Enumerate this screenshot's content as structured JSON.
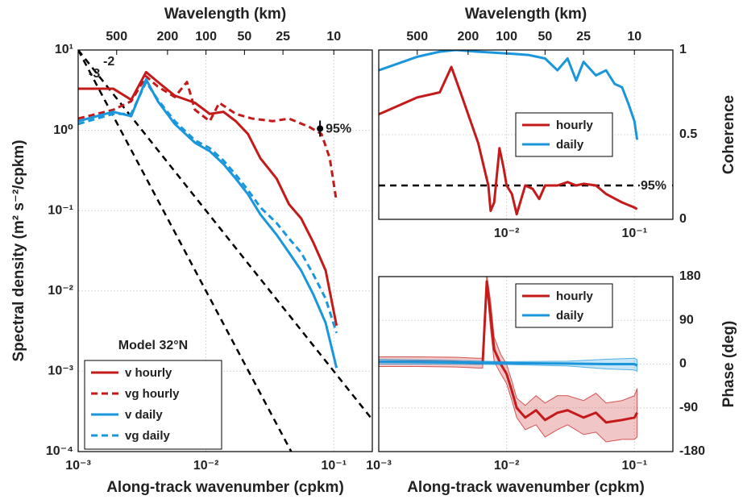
{
  "chart_data": [
    {
      "type": "line",
      "xlabel": "Along-track wavenumber (cpkm)",
      "ylabel": "Spectral density (m² s⁻²/cpkm)",
      "x2label": "Wavelength (km)",
      "xscale": "log",
      "yscale": "log",
      "xlim": [
        0.001,
        0.2
      ],
      "ylim": [
        0.0001,
        10
      ],
      "xticks": [
        {
          "value": 0.001,
          "label": "10⁻³"
        },
        {
          "value": 0.01,
          "label": "10⁻²"
        },
        {
          "value": 0.1,
          "label": "10⁻¹"
        }
      ],
      "yticks": [
        {
          "value": 0.0001,
          "label": "10⁻⁴"
        },
        {
          "value": 0.001,
          "label": "10⁻³"
        },
        {
          "value": 0.01,
          "label": "10⁻²"
        },
        {
          "value": 0.1,
          "label": "10⁻¹"
        },
        {
          "value": 1,
          "label": "10⁰"
        },
        {
          "value": 10,
          "label": "10¹"
        }
      ],
      "x2ticks": [
        500,
        200,
        100,
        50,
        25,
        10
      ],
      "yaxis": "left",
      "grid": true,
      "legend": "lower left",
      "legend_title": "Model 32°N",
      "series": [
        {
          "name": "v hourly",
          "color": "#c41a1a",
          "dash": false,
          "x": [
            0.001,
            0.00188,
            0.0026,
            0.0034,
            0.0042,
            0.0057,
            0.0082,
            0.0107,
            0.0137,
            0.0171,
            0.0213,
            0.0266,
            0.0357,
            0.0446,
            0.0555,
            0.0692,
            0.0863,
            0.105
          ],
          "values": [
            3.3,
            3.3,
            2.4,
            5.3,
            4.0,
            2.7,
            2.2,
            1.6,
            1.7,
            1.3,
            0.9,
            0.45,
            0.25,
            0.12,
            0.08,
            0.04,
            0.018,
            0.0037
          ]
        },
        {
          "name": "vg hourly",
          "color": "#c41a1a",
          "dash": true,
          "x": [
            0.001,
            0.00188,
            0.0026,
            0.0034,
            0.0042,
            0.0057,
            0.0071,
            0.0082,
            0.0107,
            0.0127,
            0.0171,
            0.023,
            0.0332,
            0.0446,
            0.0643,
            0.0801,
            0.0929,
            0.105
          ],
          "values": [
            1.4,
            1.8,
            2.3,
            4.7,
            3.5,
            2.6,
            4.0,
            1.8,
            1.3,
            2.2,
            1.6,
            1.4,
            1.3,
            1.4,
            1.1,
            0.9,
            0.45,
            0.13
          ]
        },
        {
          "name": "v daily",
          "color": "#1a96dc",
          "dash": false,
          "x": [
            0.001,
            0.00188,
            0.0026,
            0.0034,
            0.0042,
            0.0057,
            0.0082,
            0.0107,
            0.0137,
            0.0171,
            0.0213,
            0.0266,
            0.0357,
            0.0446,
            0.0555,
            0.0692,
            0.0863,
            0.105
          ],
          "values": [
            1.3,
            1.7,
            1.5,
            4.3,
            2.3,
            1.2,
            0.7,
            0.55,
            0.38,
            0.25,
            0.16,
            0.09,
            0.05,
            0.03,
            0.018,
            0.009,
            0.004,
            0.0011
          ]
        },
        {
          "name": "vg daily",
          "color": "#1a96dc",
          "dash": true,
          "x": [
            0.001,
            0.00188,
            0.0026,
            0.0034,
            0.0042,
            0.0057,
            0.0082,
            0.0107,
            0.0137,
            0.0171,
            0.0213,
            0.0266,
            0.0357,
            0.0446,
            0.0555,
            0.0692,
            0.0863,
            0.105
          ],
          "values": [
            1.2,
            1.6,
            1.6,
            4.0,
            2.4,
            1.3,
            0.75,
            0.6,
            0.42,
            0.28,
            0.18,
            0.11,
            0.07,
            0.045,
            0.03,
            0.016,
            0.008,
            0.003
          ]
        }
      ],
      "reference_lines": [
        {
          "label": "-2",
          "color": "#000000",
          "x": [
            0.001,
            0.2
          ],
          "values": [
            10,
            0.00025
          ]
        },
        {
          "label": "-3",
          "color": "#000000",
          "x": [
            0.001,
            0.0464
          ],
          "values": [
            10,
            0.0001
          ]
        }
      ],
      "annotations": [
        {
          "text": "95%",
          "x": 0.078,
          "y": 1.05
        }
      ]
    },
    {
      "type": "line",
      "ylabel": "Coherence",
      "x2label": "Wavelength (km)",
      "xscale": "log",
      "yscale": "linear",
      "xlim": [
        0.001,
        0.2
      ],
      "ylim": [
        0,
        1
      ],
      "xticks": [
        {
          "value": 0.01,
          "label": "10⁻²"
        },
        {
          "value": 0.1,
          "label": "10⁻¹"
        }
      ],
      "yticks": [
        0,
        0.5,
        1
      ],
      "x2ticks": [
        500,
        200,
        100,
        50,
        25,
        10
      ],
      "yaxis": "right",
      "grid": true,
      "legend": "center right",
      "series": [
        {
          "name": "hourly",
          "color": "#c41a1a",
          "x": [
            0.001,
            0.002,
            0.003,
            0.0037,
            0.0045,
            0.006,
            0.0072,
            0.0075,
            0.008,
            0.0088,
            0.0095,
            0.01,
            0.011,
            0.012,
            0.014,
            0.016,
            0.018,
            0.02,
            0.025,
            0.03,
            0.035,
            0.04,
            0.05,
            0.06,
            0.08,
            0.1,
            0.105
          ],
          "values": [
            0.62,
            0.72,
            0.75,
            0.9,
            0.72,
            0.45,
            0.2,
            0.05,
            0.1,
            0.42,
            0.3,
            0.2,
            0.15,
            0.03,
            0.2,
            0.18,
            0.12,
            0.2,
            0.2,
            0.22,
            0.2,
            0.21,
            0.2,
            0.15,
            0.1,
            0.07,
            0.06
          ]
        },
        {
          "name": "daily",
          "color": "#1a96dc",
          "x": [
            0.001,
            0.002,
            0.003,
            0.004,
            0.006,
            0.01,
            0.015,
            0.02,
            0.025,
            0.03,
            0.035,
            0.04,
            0.05,
            0.06,
            0.07,
            0.08,
            0.09,
            0.1,
            0.105
          ],
          "values": [
            0.88,
            0.96,
            0.99,
            1.0,
            0.99,
            0.98,
            0.97,
            0.95,
            0.88,
            0.95,
            0.82,
            0.93,
            0.85,
            0.88,
            0.8,
            0.78,
            0.68,
            0.58,
            0.47
          ]
        }
      ],
      "threshold": {
        "value": 0.2,
        "label": "95%"
      }
    },
    {
      "type": "line",
      "xlabel": "Along-track wavenumber (cpkm)",
      "ylabel": "Phase (deg)",
      "xscale": "log",
      "yscale": "linear",
      "xlim": [
        0.001,
        0.2
      ],
      "ylim": [
        -180,
        180
      ],
      "xticks": [
        {
          "value": 0.001,
          "label": "10⁻³"
        },
        {
          "value": 0.01,
          "label": "10⁻²"
        },
        {
          "value": 0.1,
          "label": "10⁻¹"
        }
      ],
      "yticks": [
        -180,
        -90,
        0,
        90,
        180
      ],
      "yaxis": "right",
      "grid": true,
      "legend": "upper right",
      "series": [
        {
          "name": "hourly",
          "color": "#c41a1a",
          "x": [
            0.001,
            0.002,
            0.004,
            0.006,
            0.0065,
            0.007,
            0.0075,
            0.008,
            0.009,
            0.01,
            0.011,
            0.012,
            0.014,
            0.017,
            0.02,
            0.025,
            0.03,
            0.04,
            0.05,
            0.06,
            0.08,
            0.1,
            0.105
          ],
          "values": [
            5,
            5,
            4,
            2,
            2,
            170,
            100,
            30,
            0,
            -20,
            -55,
            -90,
            -110,
            -95,
            -115,
            -100,
            -95,
            -110,
            -100,
            -120,
            -115,
            -110,
            -100
          ],
          "errors": [
            10,
            10,
            10,
            10,
            10,
            15,
            30,
            25,
            20,
            20,
            20,
            20,
            25,
            30,
            35,
            35,
            30,
            35,
            40,
            40,
            40,
            45,
            50
          ]
        },
        {
          "name": "daily",
          "color": "#1a96dc",
          "x": [
            0.001,
            0.003,
            0.01,
            0.03,
            0.06,
            0.1,
            0.105
          ],
          "values": [
            5,
            4,
            2,
            1,
            0,
            0,
            -3
          ],
          "errors": [
            5,
            4,
            3,
            5,
            10,
            12,
            12
          ]
        }
      ]
    }
  ]
}
